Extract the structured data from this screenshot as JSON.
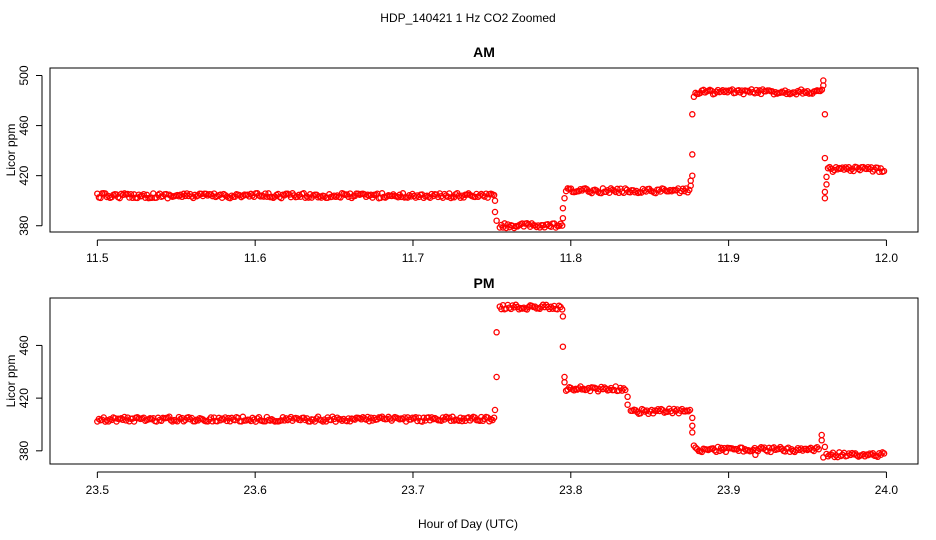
{
  "figure": {
    "title": "HDP_140421  1 Hz CO2 Zoomed",
    "xlabel": "Hour of Day (UTC)"
  },
  "colors": {
    "points": "#ff0000",
    "axis": "#000000"
  },
  "chart_data": [
    {
      "type": "scatter",
      "title": "AM",
      "ylabel": "Licor ppm",
      "xlim": [
        11.47,
        12.02
      ],
      "ylim": [
        375,
        506
      ],
      "x_ticks": [
        11.5,
        11.6,
        11.7,
        11.8,
        11.9,
        12.0
      ],
      "x_tick_labels": [
        "11.5",
        "11.6",
        "11.7",
        "11.8",
        "11.9",
        "12.0"
      ],
      "y_ticks": [
        380,
        420,
        460,
        500
      ],
      "y_tick_labels": [
        "380",
        "420",
        "460",
        "500"
      ],
      "marker": "open-circle",
      "segments": [
        {
          "x_start": 11.5,
          "x_end": 11.752,
          "y": 404
        },
        {
          "x_start": 11.755,
          "x_end": 11.795,
          "y": 380
        },
        {
          "x_start": 11.797,
          "x_end": 11.876,
          "y": 408
        },
        {
          "x_start": 11.879,
          "x_end": 11.96,
          "y": 487
        },
        {
          "x_start": 11.963,
          "x_end": 11.999,
          "y": 425
        }
      ],
      "transition_points": [
        {
          "x": 11.752,
          "y": 400
        },
        {
          "x": 11.752,
          "y": 391
        },
        {
          "x": 11.753,
          "y": 384
        },
        {
          "x": 11.795,
          "y": 386
        },
        {
          "x": 11.795,
          "y": 394
        },
        {
          "x": 11.796,
          "y": 402
        },
        {
          "x": 11.876,
          "y": 412
        },
        {
          "x": 11.876,
          "y": 416
        },
        {
          "x": 11.877,
          "y": 420
        },
        {
          "x": 11.877,
          "y": 437
        },
        {
          "x": 11.877,
          "y": 469
        },
        {
          "x": 11.878,
          "y": 483
        },
        {
          "x": 11.96,
          "y": 492
        },
        {
          "x": 11.96,
          "y": 496
        },
        {
          "x": 11.961,
          "y": 469
        },
        {
          "x": 11.961,
          "y": 434
        },
        {
          "x": 11.962,
          "y": 419
        },
        {
          "x": 11.962,
          "y": 413
        },
        {
          "x": 11.961,
          "y": 407
        },
        {
          "x": 11.961,
          "y": 402
        }
      ]
    },
    {
      "type": "scatter",
      "title": "PM",
      "ylabel": "Licor ppm",
      "xlim": [
        23.47,
        24.02
      ],
      "ylim": [
        370,
        496
      ],
      "x_ticks": [
        23.5,
        23.6,
        23.7,
        23.8,
        23.9,
        24.0
      ],
      "x_tick_labels": [
        "23.5",
        "23.6",
        "23.7",
        "23.8",
        "23.9",
        "24.0"
      ],
      "y_ticks": [
        380,
        420,
        460
      ],
      "y_tick_labels": [
        "380",
        "420",
        "460"
      ],
      "marker": "open-circle",
      "segments": [
        {
          "x_start": 23.5,
          "x_end": 23.752,
          "y": 404
        },
        {
          "x_start": 23.755,
          "x_end": 23.795,
          "y": 489
        },
        {
          "x_start": 23.797,
          "x_end": 23.835,
          "y": 427
        },
        {
          "x_start": 23.838,
          "x_end": 23.876,
          "y": 410
        },
        {
          "x_start": 23.879,
          "x_end": 23.958,
          "y": 381
        },
        {
          "x_start": 23.962,
          "x_end": 23.999,
          "y": 377
        }
      ],
      "transition_points": [
        {
          "x": 23.752,
          "y": 411
        },
        {
          "x": 23.753,
          "y": 436
        },
        {
          "x": 23.753,
          "y": 470
        },
        {
          "x": 23.795,
          "y": 482
        },
        {
          "x": 23.795,
          "y": 459
        },
        {
          "x": 23.796,
          "y": 436
        },
        {
          "x": 23.796,
          "y": 432
        },
        {
          "x": 23.836,
          "y": 421
        },
        {
          "x": 23.836,
          "y": 415
        },
        {
          "x": 23.877,
          "y": 405
        },
        {
          "x": 23.877,
          "y": 399
        },
        {
          "x": 23.877,
          "y": 394
        },
        {
          "x": 23.878,
          "y": 384
        },
        {
          "x": 23.917,
          "y": 377
        },
        {
          "x": 23.959,
          "y": 388
        },
        {
          "x": 23.959,
          "y": 392
        },
        {
          "x": 23.96,
          "y": 375
        },
        {
          "x": 23.961,
          "y": 383
        }
      ]
    }
  ]
}
